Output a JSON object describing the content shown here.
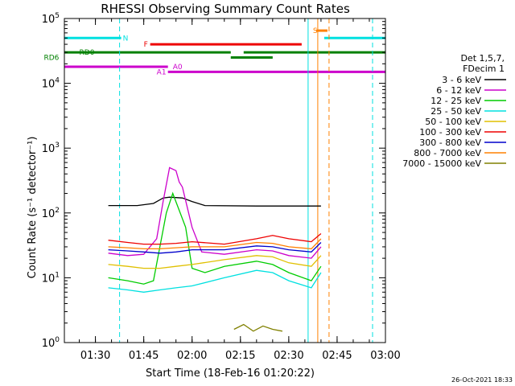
{
  "chart_data": {
    "type": "line",
    "title": "RHESSI Observing Summary Count Rates",
    "xlabel": "Start Time (18-Feb-16 01:20:22)",
    "ylabel": "Count Rate (s⁻¹ detector⁻¹)",
    "y_scale": "log",
    "ylim": [
      1,
      100000
    ],
    "xlim": [
      "01:20:22",
      "03:00:00"
    ],
    "x_tick_labels": [
      "01:30",
      "01:45",
      "02:00",
      "02:15",
      "02:30",
      "02:45",
      "03:00"
    ],
    "y_tick_labels": [
      {
        "base": "10",
        "exp": "0",
        "value": 1
      },
      {
        "base": "10",
        "exp": "1",
        "value": 10
      },
      {
        "base": "10",
        "exp": "2",
        "value": 100
      },
      {
        "base": "10",
        "exp": "3",
        "value": 1000
      },
      {
        "base": "10",
        "exp": "4",
        "value": 10000
      },
      {
        "base": "10",
        "exp": "5",
        "value": 100000
      }
    ],
    "legend_header": [
      "Det 1,5,7,",
      "FDecim 1"
    ],
    "legend_position": "right",
    "grid": false,
    "series": [
      {
        "name": "3 - 6 keV",
        "color": "#000000",
        "points": [
          [
            "01:34:00",
            130
          ],
          [
            "01:43:00",
            130
          ],
          [
            "01:48:00",
            140
          ],
          [
            "01:51:00",
            170
          ],
          [
            "01:53:00",
            175
          ],
          [
            "01:57:00",
            170
          ],
          [
            "02:00:00",
            150
          ],
          [
            "02:04:00",
            130
          ],
          [
            "02:20:00",
            128
          ],
          [
            "02:40:00",
            128
          ]
        ]
      },
      {
        "name": "6 - 12 keV",
        "color": "#cc00cc",
        "points": [
          [
            "01:34:00",
            24
          ],
          [
            "01:40:00",
            22
          ],
          [
            "01:45:00",
            23
          ],
          [
            "01:49:00",
            40
          ],
          [
            "01:51:00",
            150
          ],
          [
            "01:53:00",
            500
          ],
          [
            "01:55:00",
            450
          ],
          [
            "01:56:00",
            300
          ],
          [
            "01:57:00",
            250
          ],
          [
            "02:00:00",
            60
          ],
          [
            "02:03:00",
            25
          ],
          [
            "02:10:00",
            23
          ],
          [
            "02:20:00",
            27
          ],
          [
            "02:25:00",
            26
          ],
          [
            "02:30:00",
            22
          ],
          [
            "02:37:00",
            20
          ],
          [
            "02:40:00",
            30
          ]
        ]
      },
      {
        "name": "12 - 25 keV",
        "color": "#00cc00",
        "points": [
          [
            "01:34:00",
            10
          ],
          [
            "01:40:00",
            9
          ],
          [
            "01:45:00",
            8
          ],
          [
            "01:48:00",
            9
          ],
          [
            "01:50:00",
            30
          ],
          [
            "01:52:00",
            100
          ],
          [
            "01:54:00",
            200
          ],
          [
            "01:56:00",
            110
          ],
          [
            "01:58:00",
            60
          ],
          [
            "02:00:00",
            14
          ],
          [
            "02:04:00",
            12
          ],
          [
            "02:10:00",
            15
          ],
          [
            "02:20:00",
            18
          ],
          [
            "02:25:00",
            16
          ],
          [
            "02:30:00",
            12
          ],
          [
            "02:37:00",
            9
          ],
          [
            "02:40:00",
            15
          ]
        ]
      },
      {
        "name": "25 - 50 keV",
        "color": "#00e0e0",
        "points": [
          [
            "01:34:00",
            7
          ],
          [
            "01:40:00",
            6.5
          ],
          [
            "01:45:00",
            6
          ],
          [
            "01:50:00",
            6.5
          ],
          [
            "01:55:00",
            7
          ],
          [
            "02:00:00",
            7.5
          ],
          [
            "02:10:00",
            10
          ],
          [
            "02:20:00",
            13
          ],
          [
            "02:25:00",
            12
          ],
          [
            "02:30:00",
            9
          ],
          [
            "02:37:00",
            7
          ],
          [
            "02:40:00",
            12
          ]
        ]
      },
      {
        "name": "50 - 100 keV",
        "color": "#e0c000",
        "points": [
          [
            "01:34:00",
            16
          ],
          [
            "01:40:00",
            15
          ],
          [
            "01:45:00",
            14
          ],
          [
            "01:50:00",
            14
          ],
          [
            "01:55:00",
            15
          ],
          [
            "02:00:00",
            16
          ],
          [
            "02:10:00",
            19
          ],
          [
            "02:20:00",
            22
          ],
          [
            "02:25:00",
            21
          ],
          [
            "02:30:00",
            17
          ],
          [
            "02:37:00",
            15
          ],
          [
            "02:40:00",
            22
          ]
        ]
      },
      {
        "name": "100 - 300 keV",
        "color": "#ee0000",
        "points": [
          [
            "01:34:00",
            38
          ],
          [
            "01:40:00",
            35
          ],
          [
            "01:45:00",
            33
          ],
          [
            "01:50:00",
            33
          ],
          [
            "01:55:00",
            34
          ],
          [
            "02:00:00",
            36
          ],
          [
            "02:10:00",
            33
          ],
          [
            "02:20:00",
            40
          ],
          [
            "02:25:00",
            45
          ],
          [
            "02:30:00",
            40
          ],
          [
            "02:37:00",
            36
          ],
          [
            "02:40:00",
            48
          ]
        ]
      },
      {
        "name": "300 - 800 keV",
        "color": "#0000cc",
        "points": [
          [
            "01:34:00",
            27
          ],
          [
            "01:40:00",
            26
          ],
          [
            "01:45:00",
            25
          ],
          [
            "01:50:00",
            24
          ],
          [
            "01:55:00",
            25
          ],
          [
            "02:00:00",
            27
          ],
          [
            "02:10:00",
            27
          ],
          [
            "02:20:00",
            31
          ],
          [
            "02:25:00",
            30
          ],
          [
            "02:30:00",
            27
          ],
          [
            "02:37:00",
            25
          ],
          [
            "02:40:00",
            35
          ]
        ]
      },
      {
        "name": "800 - 7000 keV",
        "color": "#ff8000",
        "points": [
          [
            "01:34:00",
            30
          ],
          [
            "01:40:00",
            29
          ],
          [
            "01:45:00",
            28
          ],
          [
            "01:50:00",
            28
          ],
          [
            "01:55:00",
            29
          ],
          [
            "02:00:00",
            30
          ],
          [
            "02:10:00",
            30
          ],
          [
            "02:20:00",
            35
          ],
          [
            "02:25:00",
            34
          ],
          [
            "02:30:00",
            30
          ],
          [
            "02:37:00",
            28
          ],
          [
            "02:40:00",
            40
          ]
        ]
      },
      {
        "name": "7000 - 15000 keV",
        "color": "#808000",
        "points": [
          [
            "02:13:00",
            1.6
          ],
          [
            "02:16:00",
            1.9
          ],
          [
            "02:19:00",
            1.5
          ],
          [
            "02:22:00",
            1.8
          ],
          [
            "02:25:00",
            1.6
          ],
          [
            "02:28:00",
            1.5
          ]
        ]
      }
    ],
    "flag_bars": [
      {
        "label": "N",
        "color": "#00e0e0",
        "y": 50000,
        "segments": [
          [
            "01:20:22",
            "01:38:00"
          ],
          [
            "02:41:00",
            "03:00:00"
          ]
        ],
        "label_at": "01:38:30"
      },
      {
        "label": "F",
        "color": "#ee0000",
        "y": 40000,
        "segments": [
          [
            "01:47:00",
            "02:34:00"
          ]
        ],
        "label_at": "01:45:00"
      },
      {
        "label": "S",
        "color": "#ff8000",
        "y": 65000,
        "segments": [
          [
            "02:38:30",
            "02:42:00"
          ]
        ],
        "label_at": "02:37:30"
      },
      {
        "label": "RD0",
        "color": "#008000",
        "y": 30000,
        "segments": [
          [
            "01:20:22",
            "02:12:00"
          ],
          [
            "02:16:00",
            "03:00:00"
          ]
        ],
        "label_at": "01:25:00"
      },
      {
        "label": "",
        "color": "#008000",
        "y": 25000,
        "segments": [
          [
            "02:12:00",
            "02:25:00"
          ]
        ],
        "label_at": ""
      },
      {
        "label": "RD6",
        "color": "#008000",
        "y": 25000,
        "segments": [],
        "label_at": "01:14:00"
      },
      {
        "label": "A0",
        "color": "#cc00cc",
        "y": 18000,
        "segments": [
          [
            "01:20:22",
            "01:52:30"
          ]
        ],
        "label_at": "01:54:00"
      },
      {
        "label": "A1",
        "color": "#cc00cc",
        "y": 15000,
        "segments": [
          [
            "01:52:30",
            "03:00:00"
          ]
        ],
        "label_at": "01:49:00"
      }
    ],
    "vertical_markers": [
      {
        "time": "01:37:30",
        "color": "#00e0e0",
        "style": "dashed"
      },
      {
        "time": "02:56:00",
        "color": "#00e0e0",
        "style": "dashed"
      },
      {
        "time": "02:36:00",
        "color": "#00e0e0",
        "style": "solid"
      },
      {
        "time": "02:39:00",
        "color": "#ff8000",
        "style": "solid"
      },
      {
        "time": "02:42:30",
        "color": "#ff8000",
        "style": "dashed"
      }
    ],
    "footer_date": "26-Oct-2021 18:33"
  }
}
